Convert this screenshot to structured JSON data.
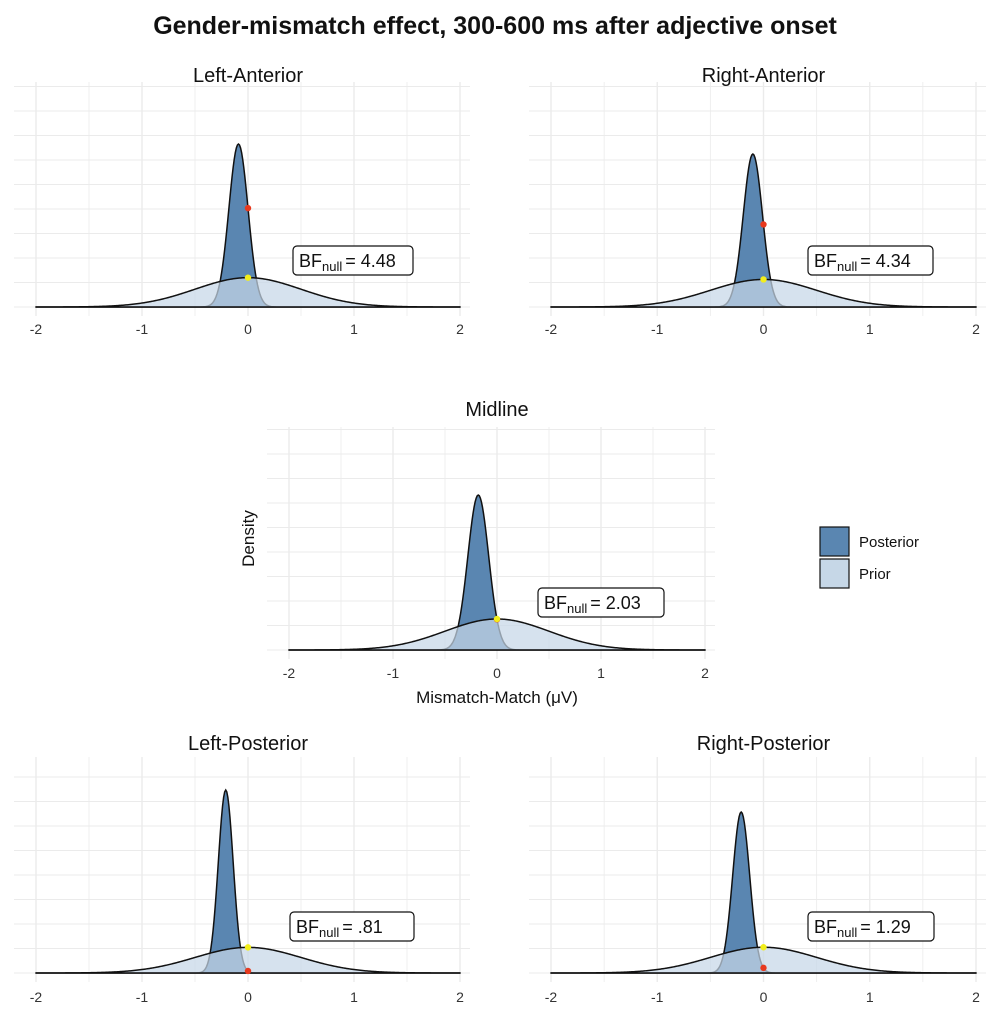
{
  "title": "Gender-mismatch effect, 300-600 ms after adjective onset",
  "colors": {
    "posterior_fill": "#5A86B1",
    "prior_fill": "#C6D7E7",
    "point_posterior": "#E8391E",
    "point_prior": "#F2EE1B",
    "grid": "#EBEBEB",
    "outline": "#111111"
  },
  "legend": {
    "items": [
      {
        "label": "Posterior",
        "color": "#5A86B1"
      },
      {
        "label": "Prior",
        "color": "#C6D7E7"
      }
    ]
  },
  "chart_data": [
    {
      "type": "area",
      "title": "Left-Anterior",
      "xlabel": "",
      "ylabel": "",
      "xlim": [
        -2,
        2
      ],
      "xticks": [
        "-2",
        "-1",
        "0",
        "1",
        "2"
      ],
      "grid": true,
      "series": [
        {
          "name": "Posterior",
          "distribution": "normal",
          "mean": -0.09,
          "sd": 0.09
        },
        {
          "name": "Prior",
          "distribution": "normal",
          "mean": 0.0,
          "sd": 0.5
        }
      ],
      "bf_label": {
        "prefix": "BF",
        "sub": "null",
        "value": "= 4.48"
      },
      "density_at_zero": {
        "posterior": 4.49,
        "prior": 1.0
      }
    },
    {
      "type": "area",
      "title": "Right-Anterior",
      "xlabel": "",
      "ylabel": "",
      "xlim": [
        -2,
        2
      ],
      "xticks": [
        "-2",
        "-1",
        "0",
        "1",
        "2"
      ],
      "grid": true,
      "series": [
        {
          "name": "Posterior",
          "distribution": "normal",
          "mean": -0.1,
          "sd": 0.09
        },
        {
          "name": "Prior",
          "distribution": "normal",
          "mean": 0.0,
          "sd": 0.5
        }
      ],
      "bf_label": {
        "prefix": "BF",
        "sub": "null",
        "value": "= 4.34"
      },
      "density_at_zero": {
        "posterior": 4.34,
        "prior": 1.0
      }
    },
    {
      "type": "area",
      "title": "Midline",
      "xlabel": "Mismatch-Match (μV)",
      "ylabel": "Density",
      "xlim": [
        -2,
        2
      ],
      "xticks": [
        "-2",
        "-1",
        "0",
        "1",
        "2"
      ],
      "grid": true,
      "series": [
        {
          "name": "Posterior",
          "distribution": "normal",
          "mean": -0.18,
          "sd": 0.1
        },
        {
          "name": "Prior",
          "distribution": "normal",
          "mean": 0.0,
          "sd": 0.5
        }
      ],
      "bf_label": {
        "prefix": "BF",
        "sub": "null",
        "value": "= 2.03"
      },
      "density_at_zero": {
        "posterior": 2.03,
        "prior": 1.0
      }
    },
    {
      "type": "area",
      "title": "Left-Posterior",
      "xlabel": "",
      "ylabel": "",
      "xlim": [
        -2,
        2
      ],
      "xticks": [
        "-2",
        "-1",
        "0",
        "1",
        "2"
      ],
      "grid": true,
      "series": [
        {
          "name": "Posterior",
          "distribution": "normal",
          "mean": -0.21,
          "sd": 0.07
        },
        {
          "name": "Prior",
          "distribution": "normal",
          "mean": 0.0,
          "sd": 0.5
        }
      ],
      "bf_label": {
        "prefix": "BF",
        "sub": "null",
        "value": "= .81"
      },
      "density_at_zero": {
        "posterior": 0.81,
        "prior": 1.0
      }
    },
    {
      "type": "area",
      "title": "Right-Posterior",
      "xlabel": "",
      "ylabel": "",
      "xlim": [
        -2,
        2
      ],
      "xticks": [
        "-2",
        "-1",
        "0",
        "1",
        "2"
      ],
      "grid": true,
      "series": [
        {
          "name": "Posterior",
          "distribution": "normal",
          "mean": -0.21,
          "sd": 0.08
        },
        {
          "name": "Prior",
          "distribution": "normal",
          "mean": 0.0,
          "sd": 0.5
        }
      ],
      "bf_label": {
        "prefix": "BF",
        "sub": "null",
        "value": "= 1.29"
      },
      "density_at_zero": {
        "posterior": 1.29,
        "prior": 1.0
      }
    }
  ]
}
